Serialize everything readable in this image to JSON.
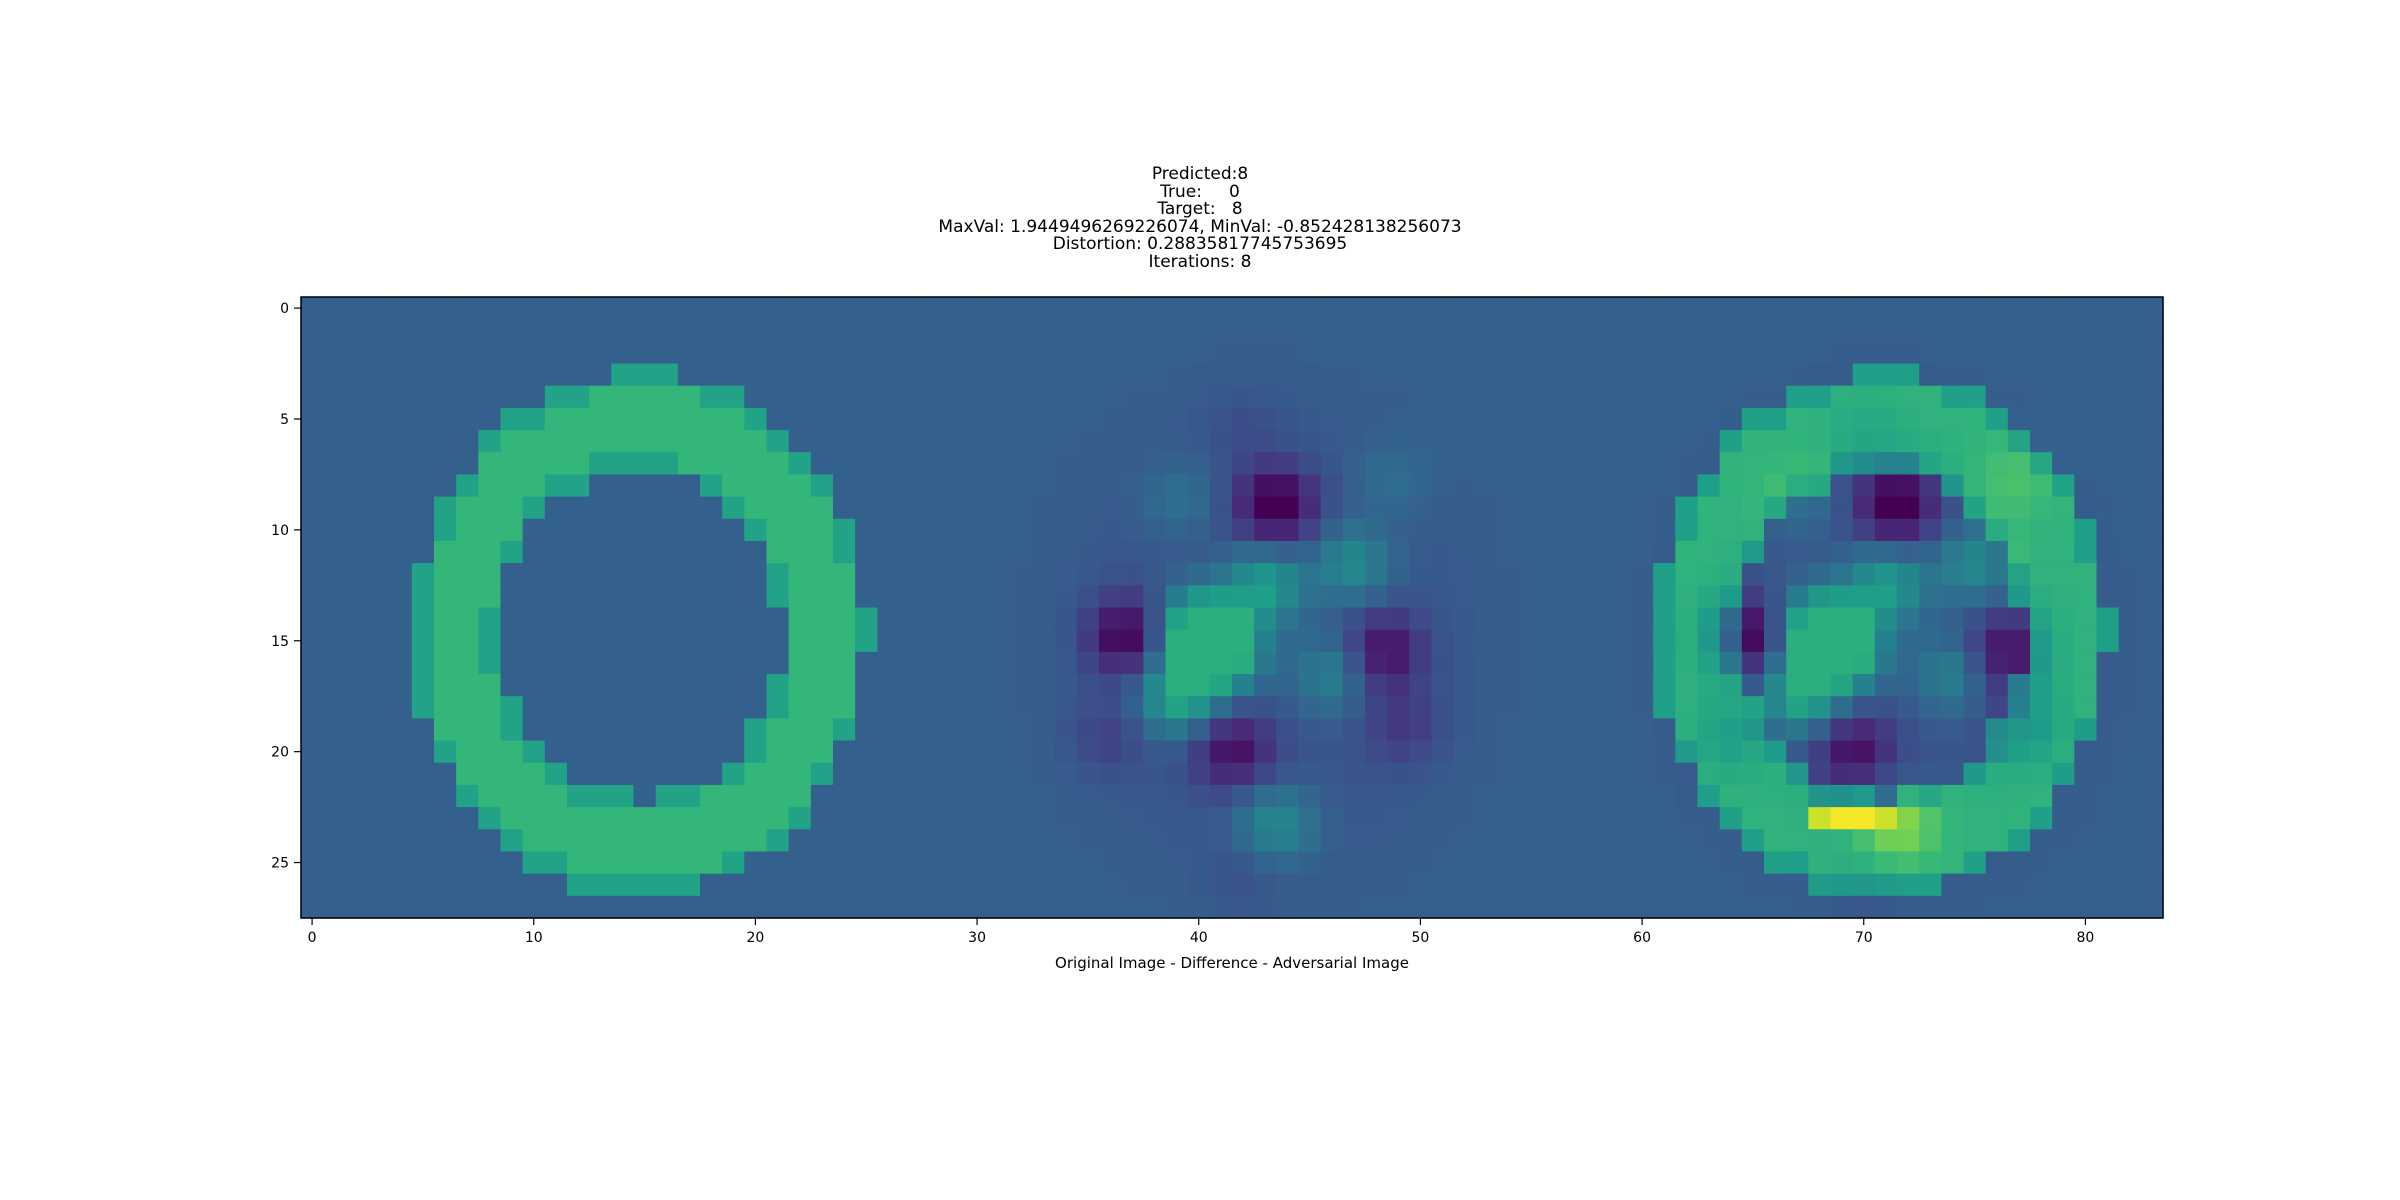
{
  "title_lines": [
    "Predicted:8",
    "True:     0",
    "Target:   8",
    "MaxVal: 1.9449496269226074, MinVal: -0.852428138256073",
    "Distortion: 0.28835817745753695",
    "Iterations: 8"
  ],
  "chart_data": {
    "type": "heatmap",
    "title": "Predicted:8\nTrue:     0\nTarget:   8\nMaxVal: 1.9449496269226074, MinVal: -0.852428138256073\nDistortion: 0.28835817745753695\nIterations: 8",
    "xlabel": "Original Image - Difference - Adversarial Image",
    "ylabel": "",
    "panels": [
      "Original Image",
      "Difference",
      "Adversarial Image"
    ],
    "n_rows": 28,
    "n_cols": 84,
    "xlim": [
      -0.5,
      83.5
    ],
    "ylim": [
      27.5,
      -0.5
    ],
    "x_ticks": [
      0,
      10,
      20,
      30,
      40,
      50,
      60,
      70,
      80
    ],
    "x_tick_labels": [
      "0",
      "10",
      "20",
      "30",
      "40",
      "50",
      "60",
      "70",
      "80"
    ],
    "y_ticks": [
      0,
      5,
      10,
      15,
      20,
      25
    ],
    "y_tick_labels": [
      "0",
      "5",
      "10",
      "15",
      "20",
      "25"
    ],
    "vmin": -0.852428138256073,
    "vmax": 1.9449496269226074,
    "colormap": "viridis",
    "colormap_stops": [
      "#440154",
      "#482878",
      "#3e4989",
      "#31688e",
      "#26828e",
      "#1f9e89",
      "#35b779",
      "#6ece58",
      "#b5de2b",
      "#fde725"
    ],
    "estimated_features": {
      "original_stroke_value": 1.0,
      "background_value": 0.0,
      "ring_center": [
        14.8,
        14.7
      ],
      "ring_radii": [
        8.3,
        9.6
      ],
      "ring_half_width": 1.35,
      "diff_positive_spots": [
        [
          40,
          14.5,
          1.05
        ],
        [
          41,
          15.5,
          1.0
        ],
        [
          39,
          17.5,
          0.85
        ],
        [
          43,
          12.5,
          0.7
        ],
        [
          47,
          11.5,
          0.55
        ],
        [
          46,
          16.5,
          0.45
        ],
        [
          43.5,
          23.5,
          0.7
        ],
        [
          39,
          8.5,
          0.3
        ],
        [
          49,
          7.5,
          0.35
        ]
      ],
      "diff_negative_spots": [
        [
          36.5,
          14.8,
          -0.85
        ],
        [
          43.5,
          8.8,
          -0.85
        ],
        [
          48.5,
          15.5,
          -0.65
        ],
        [
          41.5,
          20.0,
          -0.6
        ],
        [
          35.5,
          19.5,
          -0.35
        ],
        [
          49.5,
          19.0,
          -0.35
        ],
        [
          42,
          26,
          -0.25
        ],
        [
          42,
          5,
          -0.2
        ]
      ],
      "adversarial_peak": [
        69.5,
        23.0,
        1.9449496269226074
      ]
    }
  }
}
